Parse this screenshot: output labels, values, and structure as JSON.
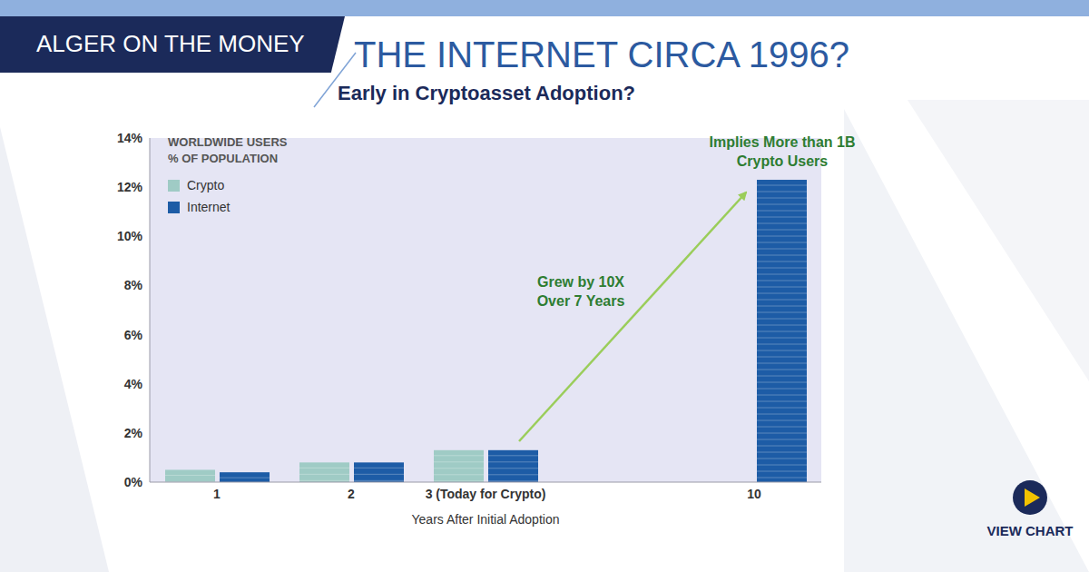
{
  "brand": "ALGER ON THE MONEY",
  "button": "VIEW CHART",
  "chart_data": {
    "type": "bar",
    "title": "THE INTERNET CIRCA 1996?",
    "subtitle": "Early in Cryptoasset Adoption?",
    "legend_title": "WORLDWIDE USERS % OF POPULATION",
    "categories": [
      "1",
      "2",
      "3 (Today for Crypto)",
      null,
      "10"
    ],
    "series": [
      {
        "name": "Crypto",
        "color": "#9fcbc5",
        "values": [
          0.5,
          0.8,
          1.3,
          null,
          null
        ]
      },
      {
        "name": "Internet",
        "color": "#1d5ca6",
        "values": [
          0.4,
          0.8,
          1.3,
          null,
          12.3
        ]
      }
    ],
    "x_label": "Years After Initial Adoption",
    "ylim": [
      0,
      14
    ],
    "yticks": [
      {
        "value": 0,
        "label": "0%"
      },
      {
        "value": 2,
        "label": "2%"
      },
      {
        "value": 4,
        "label": "4%"
      },
      {
        "value": 6,
        "label": "6%"
      },
      {
        "value": 8,
        "label": "8%"
      },
      {
        "value": 10,
        "label": "10%"
      },
      {
        "value": 12,
        "label": "12%"
      },
      {
        "value": 14,
        "label": "14%"
      }
    ],
    "grid": false,
    "legend": "upper left",
    "annotations": [
      "Grew by 10X Over 7 Years",
      "Implies More than 1B Crypto Users"
    ]
  }
}
